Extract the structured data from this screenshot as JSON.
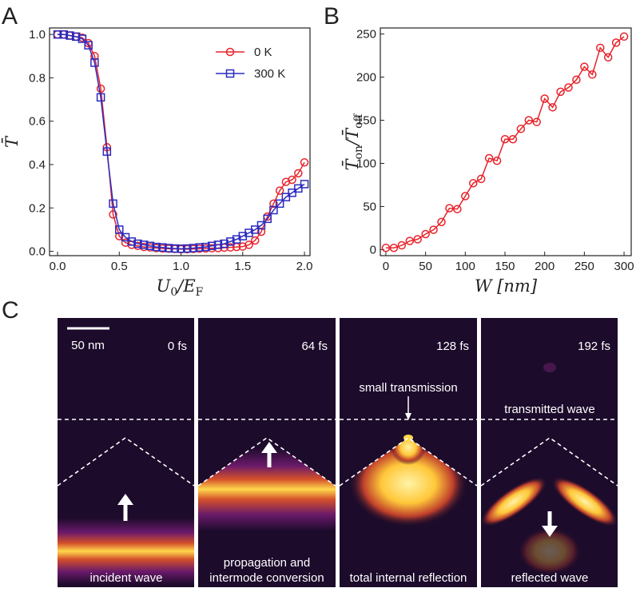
{
  "chart_data": [
    {
      "type": "line",
      "panel_label": "A",
      "x_label": [
        "U",
        "0",
        "/E",
        "F"
      ],
      "y_label": "T̄",
      "x": [
        0.0,
        0.05,
        0.1,
        0.15,
        0.2,
        0.25,
        0.3,
        0.35,
        0.4,
        0.45,
        0.5,
        0.55,
        0.6,
        0.65,
        0.7,
        0.75,
        0.8,
        0.85,
        0.9,
        0.95,
        1.0,
        1.05,
        1.1,
        1.15,
        1.2,
        1.25,
        1.3,
        1.35,
        1.4,
        1.45,
        1.5,
        1.55,
        1.6,
        1.65,
        1.7,
        1.75,
        1.8,
        1.85,
        1.9,
        1.95,
        2.0
      ],
      "series": [
        {
          "name": "0 K",
          "color": "#e8232a",
          "marker": "circle",
          "values": [
            1.0,
            1.0,
            0.995,
            0.99,
            0.985,
            0.96,
            0.9,
            0.75,
            0.48,
            0.17,
            0.07,
            0.04,
            0.03,
            0.025,
            0.02,
            0.018,
            0.015,
            0.013,
            0.012,
            0.011,
            0.01,
            0.01,
            0.011,
            0.012,
            0.013,
            0.014,
            0.015,
            0.017,
            0.018,
            0.02,
            0.022,
            0.03,
            0.05,
            0.09,
            0.16,
            0.22,
            0.28,
            0.32,
            0.33,
            0.36,
            0.41
          ]
        },
        {
          "name": "300 K",
          "color": "#2b2bbf",
          "marker": "square",
          "values": [
            1.0,
            1.0,
            0.995,
            0.99,
            0.98,
            0.95,
            0.87,
            0.71,
            0.46,
            0.22,
            0.1,
            0.065,
            0.045,
            0.035,
            0.03,
            0.025,
            0.02,
            0.018,
            0.015,
            0.013,
            0.012,
            0.013,
            0.015,
            0.018,
            0.02,
            0.025,
            0.03,
            0.035,
            0.045,
            0.055,
            0.07,
            0.085,
            0.1,
            0.12,
            0.15,
            0.19,
            0.22,
            0.25,
            0.27,
            0.29,
            0.31
          ]
        }
      ],
      "xlim": [
        -0.065,
        2.045
      ],
      "ylim": [
        -0.02,
        1.03
      ],
      "xticks": [
        {
          "value": 0,
          "label": "0.0"
        },
        0.5,
        {
          "value": 1,
          "label": "1.0"
        },
        1.5,
        {
          "value": 2,
          "label": "2.0"
        }
      ],
      "yticks": [
        {
          "value": 0,
          "label": "0.0"
        },
        0.2,
        0.4,
        0.6,
        0.8,
        {
          "value": 1,
          "label": "1.0"
        }
      ],
      "legend": "upper right",
      "grid": false
    },
    {
      "type": "line",
      "panel_label": "B",
      "x_label": "W [nm]",
      "y_label": [
        "T̄",
        "on",
        "/T̄",
        "off"
      ],
      "x": [
        0,
        10,
        20,
        30,
        40,
        50,
        60,
        70,
        80,
        90,
        100,
        110,
        120,
        130,
        140,
        150,
        160,
        170,
        180,
        190,
        200,
        210,
        220,
        230,
        240,
        250,
        260,
        270,
        280,
        290,
        300
      ],
      "series": [
        {
          "name": null,
          "color": "#e8232a",
          "marker": "circle",
          "values": [
            2,
            2,
            5,
            10,
            12,
            18,
            23,
            32,
            48,
            47,
            62,
            77,
            82,
            106,
            103,
            128,
            128,
            140,
            150,
            148,
            175,
            165,
            183,
            188,
            197,
            212,
            203,
            234,
            223,
            240,
            247
          ]
        }
      ],
      "xlim": [
        -7,
        309
      ],
      "ylim": [
        -7,
        257
      ],
      "xticks": [
        0,
        50,
        100,
        150,
        200,
        250,
        300
      ],
      "yticks": [
        0,
        50,
        100,
        150,
        200,
        250
      ],
      "legend": null,
      "grid": false
    }
  ],
  "panel_c": {
    "label": "C",
    "scale_bar": "50 nm",
    "frames": [
      {
        "time": "0 fs",
        "caption": [
          "incident wave"
        ]
      },
      {
        "time": "64 fs",
        "caption": [
          "propagation and",
          "intermode conversion"
        ]
      },
      {
        "time": "128 fs",
        "annotation": "small transmission",
        "caption": [
          "total internal reflection"
        ]
      },
      {
        "time": "192 fs",
        "annotation": "transmitted wave",
        "caption": [
          "reflected wave"
        ]
      }
    ]
  }
}
